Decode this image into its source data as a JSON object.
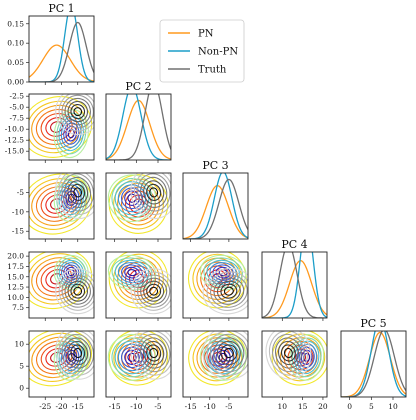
{
  "chart_data": {
    "type": "corner",
    "variables": [
      "PC 1",
      "PC 2",
      "PC 3",
      "PC 4",
      "PC 5"
    ],
    "axis_ranges": [
      [
        -30,
        -10
      ],
      [
        -17,
        -2
      ],
      [
        -17,
        0
      ],
      [
        5,
        21
      ],
      [
        -2,
        13
      ]
    ],
    "diag_ticks": [
      [
        0.0,
        0.05,
        0.1,
        0.15
      ],
      [],
      [],
      [],
      []
    ],
    "diag_tick_labels": [
      "0.00",
      "0.05",
      "0.10",
      "0.15"
    ],
    "x_ticks": [
      [
        -25,
        -20,
        -15
      ],
      [
        -15,
        -10,
        -5
      ],
      [
        -15,
        -10,
        -5
      ],
      [
        10,
        15,
        20
      ],
      [
        0,
        5,
        10
      ]
    ],
    "y_ticks": {
      "1": [
        -2.5,
        -5.0,
        -7.5,
        -10.0,
        -12.5,
        -15.0
      ],
      "2": [
        -5,
        -10,
        -15
      ],
      "3": [
        20.0,
        17.5,
        15.0,
        12.5,
        10.0,
        7.5
      ],
      "4": [
        10,
        5,
        0
      ]
    },
    "y_tick_labels": {
      "1": [
        "-2.5",
        "-5.0",
        "-7.5",
        "-10.0",
        "-12.5",
        "-15.0"
      ],
      "2": [
        "-5",
        "-10",
        "-15"
      ],
      "3": [
        "20.0",
        "17.5",
        "15.0",
        "12.5",
        "10.0",
        "7.5"
      ],
      "4": [
        "10",
        "5",
        "0"
      ]
    },
    "series": [
      {
        "name": "PN",
        "color": "#ff9a1f",
        "mean": [
          -21.5,
          -9.5,
          -8.0,
          14.5,
          7.0
        ],
        "sd": [
          4.2,
          2.6,
          2.9,
          2.7,
          2.4
        ]
      },
      {
        "name": "Non-PN",
        "color": "#1c9ec9",
        "mean": [
          -17.0,
          -11.0,
          -6.5,
          16.0,
          7.0
        ],
        "sd": [
          2.0,
          2.1,
          2.3,
          1.6,
          2.0
        ]
      },
      {
        "name": "Truth",
        "color": "#707070",
        "mean": [
          -15.0,
          -6.0,
          -5.0,
          11.5,
          8.0
        ],
        "sd": [
          2.6,
          2.0,
          2.6,
          2.1,
          2.3
        ]
      }
    ],
    "diag_ylim": [
      0,
      0.17
    ],
    "legend_position": "top"
  }
}
